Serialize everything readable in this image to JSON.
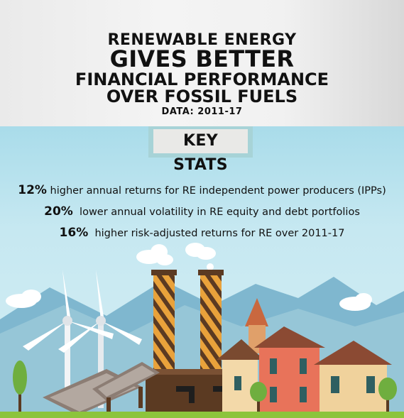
{
  "header": {
    "line1": "RENEWABLE ENERGY",
    "line2": "GIVES BETTER",
    "line3": "FINANCIAL PERFORMANCE",
    "line4": "OVER FOSSIL FUELS",
    "data_range": "DATA: 2011-17"
  },
  "key_stats": {
    "label": "KEY STATS",
    "items": [
      {
        "value": "12%",
        "text": " higher annual returns for RE independent power producers (IPPs)"
      },
      {
        "value": "20%",
        "text": "  lower annual volatility in RE equity and debt portfolios"
      },
      {
        "value": "16%",
        "text": "  higher risk-adjusted returns for RE over 2011-17"
      }
    ]
  },
  "colors": {
    "sky": "#c6e3ee",
    "chimney_orange": "#e9a23b",
    "chimney_brown": "#5b3a22",
    "house_red": "#e8735a",
    "house_cream": "#f3d9a9",
    "tree_green": "#6fae3f",
    "ground_green": "#8cc43c"
  }
}
